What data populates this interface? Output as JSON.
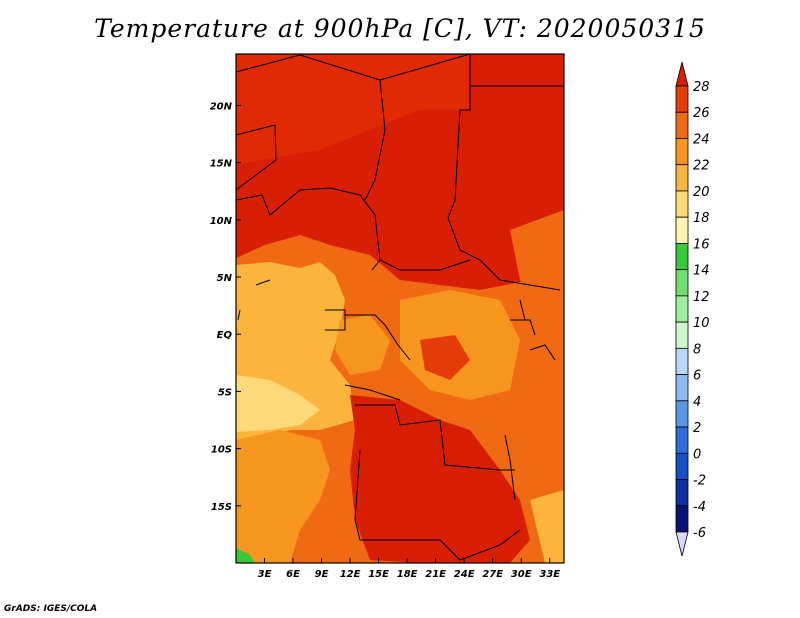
{
  "title": "Temperature at 900hPa [C], VT: 2020050315",
  "credit": "GrADS: IGES/COLA",
  "map": {
    "lon_range": [
      0,
      34.5
    ],
    "lat_range": [
      -20,
      24.5
    ],
    "x_ticks": [
      "3E",
      "6E",
      "9E",
      "12E",
      "15E",
      "18E",
      "21E",
      "24E",
      "27E",
      "30E",
      "33E"
    ],
    "y_ticks": [
      "20N",
      "15N",
      "10N",
      "5N",
      "EQ",
      "5S",
      "10S",
      "15S"
    ]
  },
  "colorbar": {
    "levels": [
      "28",
      "26",
      "24",
      "22",
      "20",
      "18",
      "16",
      "14",
      "12",
      "10",
      "8",
      "6",
      "4",
      "2",
      "0",
      "-2",
      "-4",
      "-6"
    ],
    "colors": [
      "#d81e05",
      "#e63c0a",
      "#f06a14",
      "#f7961e",
      "#fbb43c",
      "#fdd97a",
      "#fff3b0",
      "#37c83c",
      "#6ede6e",
      "#9ef09e",
      "#cdf8cd",
      "#b8d8f8",
      "#8cb9f0",
      "#5a96e6",
      "#2d6edc",
      "#1450c8",
      "#0a32a0",
      "#0a1478",
      "#d8d8f8"
    ]
  }
}
